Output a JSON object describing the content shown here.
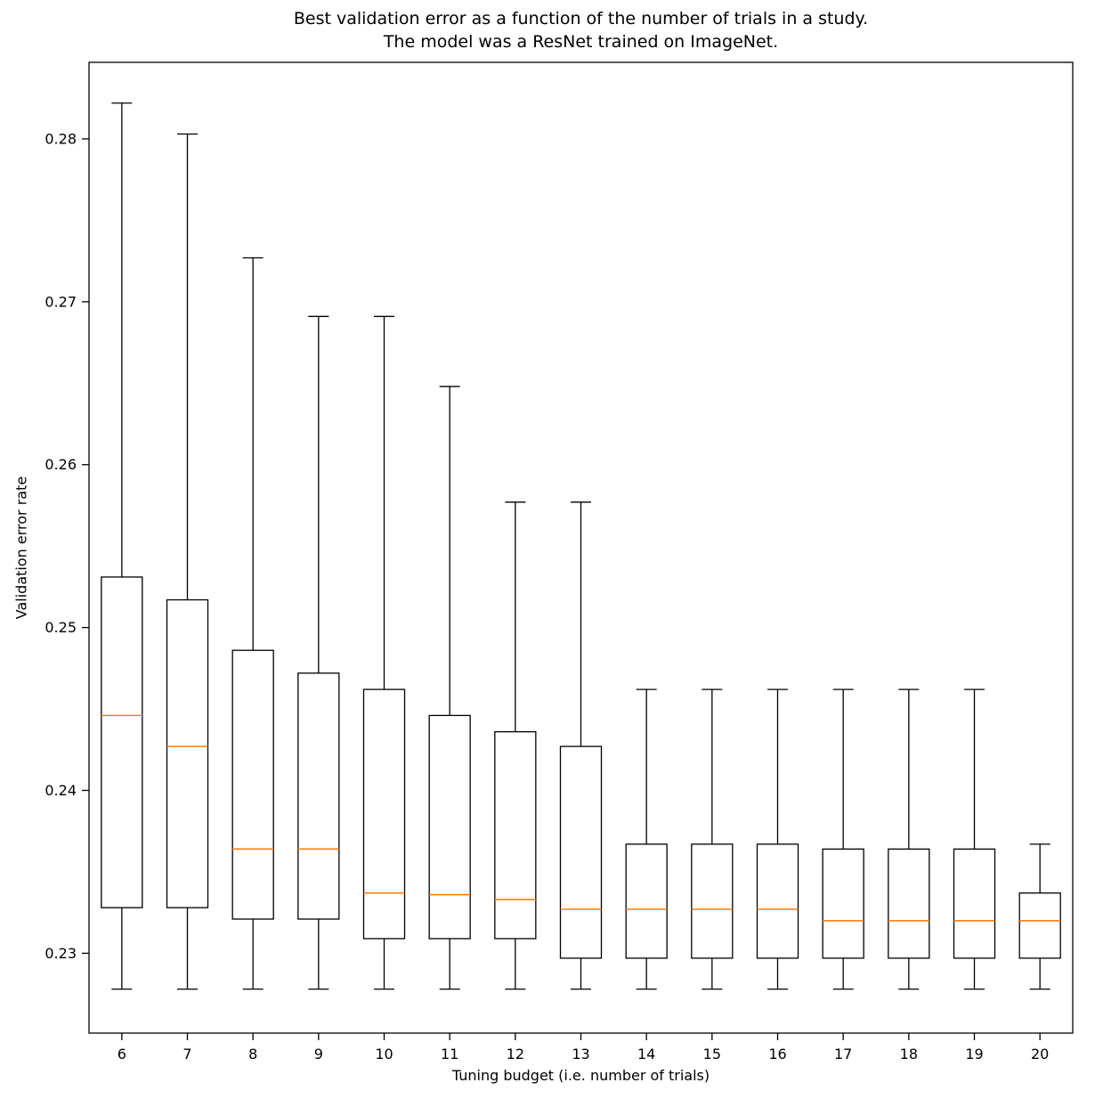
{
  "chart_data": {
    "type": "boxplot",
    "title_lines": [
      "Best validation error as a function of the number of trials in a study.",
      "The model was a ResNet trained on ImageNet."
    ],
    "xlabel": "Tuning budget (i.e. number of trials)",
    "ylabel": "Validation error rate",
    "categories": [
      "6",
      "7",
      "8",
      "9",
      "10",
      "11",
      "12",
      "13",
      "14",
      "15",
      "16",
      "17",
      "18",
      "19",
      "20"
    ],
    "ytick_labels": [
      "0.23",
      "0.24",
      "0.25",
      "0.26",
      "0.27",
      "0.28"
    ],
    "ytick_values": [
      0.23,
      0.24,
      0.25,
      0.26,
      0.27,
      0.28
    ],
    "ylim": [
      0.2251,
      0.2847
    ],
    "grid": false,
    "legend": null,
    "colors": {
      "box_edge": "#000000",
      "median": "#ff7f0e",
      "background": "#ffffff",
      "text": "#000000"
    },
    "boxes": [
      {
        "budget": "6",
        "whisker_low": 0.2278,
        "q1": 0.2328,
        "median": 0.2446,
        "q3": 0.2531,
        "whisker_high": 0.2822
      },
      {
        "budget": "7",
        "whisker_low": 0.2278,
        "q1": 0.2328,
        "median": 0.2427,
        "q3": 0.2517,
        "whisker_high": 0.2803
      },
      {
        "budget": "8",
        "whisker_low": 0.2278,
        "q1": 0.2321,
        "median": 0.2364,
        "q3": 0.2486,
        "whisker_high": 0.2727
      },
      {
        "budget": "9",
        "whisker_low": 0.2278,
        "q1": 0.2321,
        "median": 0.2364,
        "q3": 0.2472,
        "whisker_high": 0.2691
      },
      {
        "budget": "10",
        "whisker_low": 0.2278,
        "q1": 0.2309,
        "median": 0.2337,
        "q3": 0.2462,
        "whisker_high": 0.2691
      },
      {
        "budget": "11",
        "whisker_low": 0.2278,
        "q1": 0.2309,
        "median": 0.2336,
        "q3": 0.2446,
        "whisker_high": 0.2648
      },
      {
        "budget": "12",
        "whisker_low": 0.2278,
        "q1": 0.2309,
        "median": 0.2333,
        "q3": 0.2436,
        "whisker_high": 0.2577
      },
      {
        "budget": "13",
        "whisker_low": 0.2278,
        "q1": 0.2297,
        "median": 0.2327,
        "q3": 0.2427,
        "whisker_high": 0.2577
      },
      {
        "budget": "14",
        "whisker_low": 0.2278,
        "q1": 0.2297,
        "median": 0.2327,
        "q3": 0.2367,
        "whisker_high": 0.2462
      },
      {
        "budget": "15",
        "whisker_low": 0.2278,
        "q1": 0.2297,
        "median": 0.2327,
        "q3": 0.2367,
        "whisker_high": 0.2462
      },
      {
        "budget": "16",
        "whisker_low": 0.2278,
        "q1": 0.2297,
        "median": 0.2327,
        "q3": 0.2367,
        "whisker_high": 0.2462
      },
      {
        "budget": "17",
        "whisker_low": 0.2278,
        "q1": 0.2297,
        "median": 0.232,
        "q3": 0.2364,
        "whisker_high": 0.2462
      },
      {
        "budget": "18",
        "whisker_low": 0.2278,
        "q1": 0.2297,
        "median": 0.232,
        "q3": 0.2364,
        "whisker_high": 0.2462
      },
      {
        "budget": "19",
        "whisker_low": 0.2278,
        "q1": 0.2297,
        "median": 0.232,
        "q3": 0.2364,
        "whisker_high": 0.2462
      },
      {
        "budget": "20",
        "whisker_low": 0.2278,
        "q1": 0.2297,
        "median": 0.232,
        "q3": 0.2337,
        "whisker_high": 0.2367
      }
    ]
  }
}
